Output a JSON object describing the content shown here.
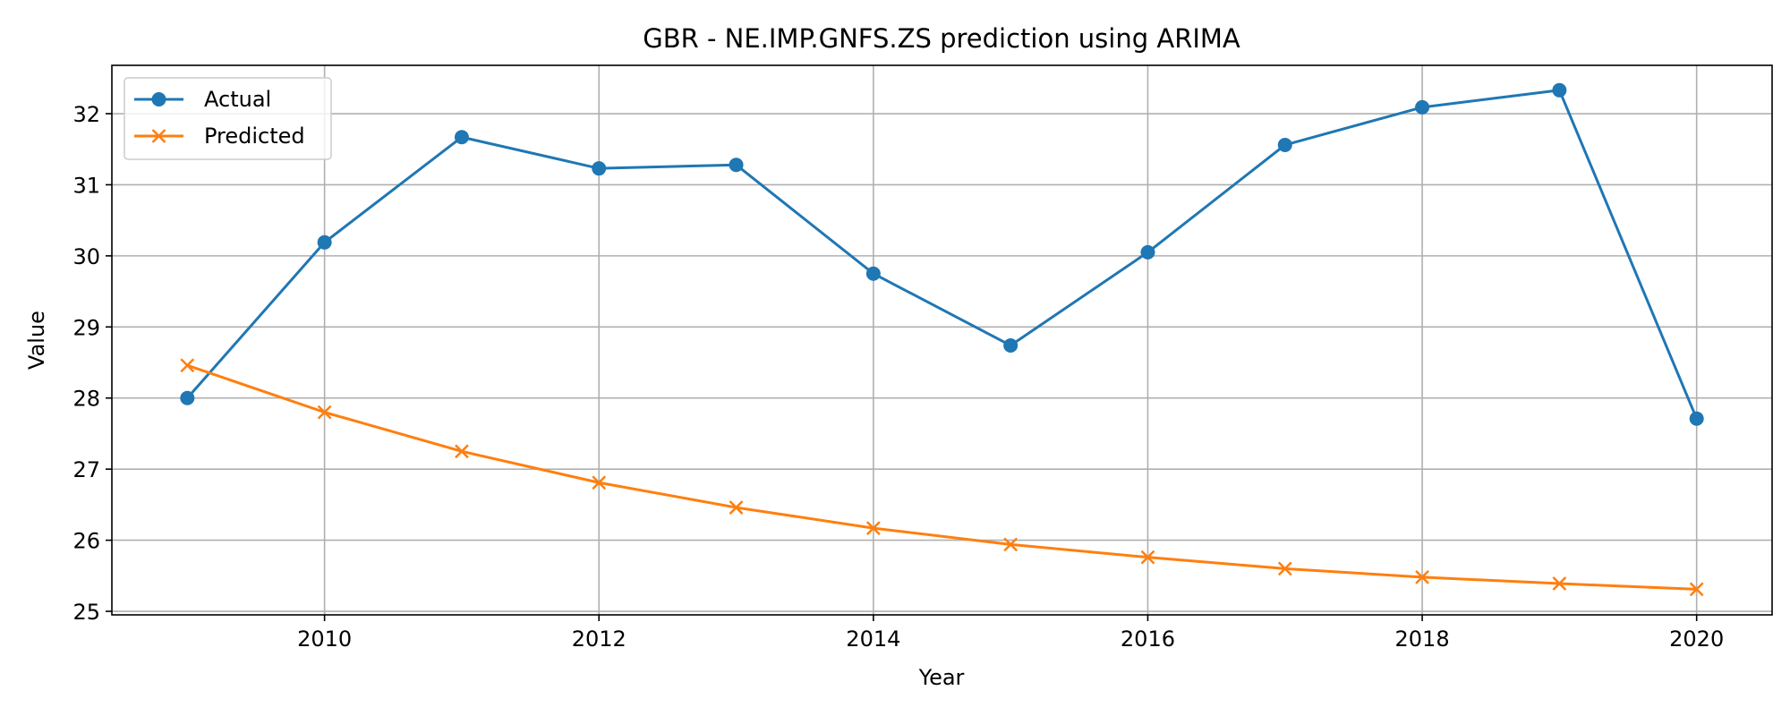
{
  "chart_data": {
    "type": "line",
    "title": "GBR - NE.IMP.GNFS.ZS prediction using ARIMA",
    "xlabel": "Year",
    "ylabel": "Value",
    "xlim": [
      2008.45,
      2020.55
    ],
    "ylim": [
      24.95,
      32.68
    ],
    "xticks": [
      2010,
      2012,
      2014,
      2016,
      2018,
      2020
    ],
    "yticks": [
      25,
      26,
      27,
      28,
      29,
      30,
      31,
      32
    ],
    "grid": true,
    "legend_position": "upper left",
    "x": [
      2009,
      2010,
      2011,
      2012,
      2013,
      2014,
      2015,
      2016,
      2017,
      2018,
      2019,
      2020
    ],
    "series": [
      {
        "name": "Actual",
        "color": "#1f77b4",
        "marker": "circle",
        "values": [
          28.0,
          30.19,
          31.67,
          31.23,
          31.28,
          29.75,
          28.74,
          30.05,
          31.56,
          32.09,
          32.33,
          27.71
        ]
      },
      {
        "name": "Predicted",
        "color": "#ff7f0e",
        "marker": "x",
        "values": [
          28.46,
          27.8,
          27.25,
          26.81,
          26.46,
          26.17,
          25.94,
          25.76,
          25.6,
          25.48,
          25.39,
          25.31
        ]
      }
    ]
  }
}
